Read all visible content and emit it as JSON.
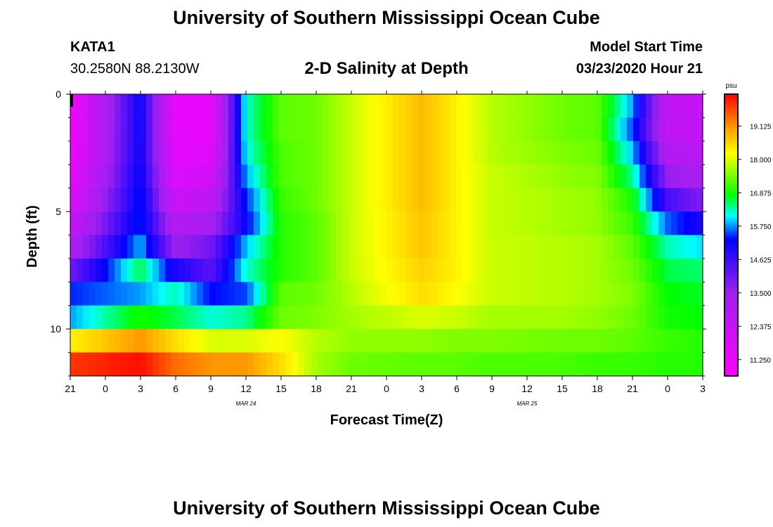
{
  "header": {
    "title": "University of Southern Mississippi Ocean Cube",
    "station": "KATA1",
    "coords": "30.2580N 88.2130W",
    "plot_title": "2-D Salinity at Depth",
    "model_label": "Model Start Time",
    "model_time": "03/23/2020 Hour 21"
  },
  "footer": {
    "title": "University of Southern Mississippi Ocean Cube"
  },
  "chart_data": {
    "type": "heatmap",
    "title": "2-D Salinity at Depth",
    "xlabel": "Forecast Time(Z)",
    "ylabel": "Depth (ft)",
    "x_ticks": [
      "21",
      "0",
      "3",
      "6",
      "9",
      "12",
      "15",
      "18",
      "21",
      "0",
      "3",
      "6",
      "9",
      "12",
      "15",
      "18",
      "21",
      "0",
      "3"
    ],
    "x_range_hours": [
      0,
      54
    ],
    "x_date_labels": [
      {
        "label": "MAR 24",
        "hour": 15
      },
      {
        "label": "MAR 25",
        "hour": 39
      }
    ],
    "y_ticks": [
      0,
      5,
      10
    ],
    "ylim": [
      0,
      12
    ],
    "y_inverted": true,
    "colorbar": {
      "unit": "psu",
      "range": [
        10.7,
        20.2
      ],
      "ticks": [
        "19.125",
        "18.000",
        "16.875",
        "15.750",
        "14.625",
        "13.500",
        "12.375",
        "11.250"
      ],
      "tick_values": [
        19.125,
        18.0,
        16.875,
        15.75,
        14.625,
        13.5,
        12.375,
        11.25
      ]
    },
    "time_hours": [
      0,
      6,
      9,
      12,
      15,
      18,
      21,
      24,
      30,
      33,
      36,
      42,
      45,
      48,
      51,
      54
    ],
    "layer_depths_ft": [
      0.5,
      1.5,
      2.5,
      3.5,
      4.5,
      5.5,
      6.5,
      7.5,
      8.5,
      9.5,
      10.5,
      11.5
    ],
    "layers": [
      [
        11.1,
        15.2,
        11.4,
        11.4,
        16.2,
        17.3,
        17.4,
        17.9,
        18.8,
        18.3,
        17.8,
        17.4,
        17.3,
        15.8,
        12.5,
        12.4
      ],
      [
        11.1,
        15.2,
        11.4,
        11.4,
        16.2,
        17.3,
        17.4,
        17.9,
        18.8,
        18.3,
        17.8,
        17.4,
        17.3,
        15.5,
        12.6,
        12.5
      ],
      [
        11.2,
        15.2,
        11.5,
        11.6,
        16.1,
        17.2,
        17.4,
        17.9,
        18.8,
        18.3,
        17.8,
        17.5,
        17.4,
        15.9,
        13.0,
        12.8
      ],
      [
        11.4,
        15.3,
        11.8,
        12.0,
        15.8,
        17.2,
        17.4,
        17.9,
        18.8,
        18.3,
        17.9,
        17.6,
        17.5,
        16.4,
        13.6,
        13.2
      ],
      [
        11.8,
        15.4,
        12.3,
        12.6,
        15.4,
        17.1,
        17.4,
        17.9,
        18.8,
        18.3,
        17.9,
        17.7,
        17.6,
        16.9,
        14.5,
        13.8
      ],
      [
        12.4,
        15.5,
        12.9,
        13.3,
        15.2,
        17.0,
        17.3,
        17.9,
        18.7,
        18.3,
        17.9,
        17.7,
        17.6,
        17.1,
        15.6,
        15.0
      ],
      [
        13.0,
        15.9,
        13.5,
        14.0,
        15.9,
        17.0,
        17.3,
        17.9,
        18.7,
        18.3,
        17.9,
        17.8,
        17.7,
        17.3,
        16.3,
        16.0
      ],
      [
        14.0,
        16.6,
        15.0,
        14.3,
        16.2,
        17.0,
        17.3,
        17.9,
        18.6,
        18.3,
        17.9,
        17.8,
        17.7,
        17.4,
        16.6,
        16.5
      ],
      [
        15.4,
        15.8,
        16.3,
        15.3,
        15.5,
        17.3,
        17.4,
        17.8,
        18.5,
        18.2,
        17.9,
        17.8,
        17.7,
        17.5,
        16.8,
        16.7
      ],
      [
        15.8,
        16.9,
        16.6,
        16.2,
        16.4,
        17.4,
        17.5,
        17.7,
        18.0,
        17.9,
        17.7,
        17.7,
        17.6,
        17.4,
        16.9,
        16.8
      ],
      [
        18.3,
        19.1,
        18.5,
        18.0,
        18.0,
        18.2,
        17.8,
        17.6,
        17.6,
        17.5,
        17.5,
        17.4,
        17.4,
        17.3,
        17.1,
        17.0
      ],
      [
        19.8,
        20.1,
        19.4,
        19.1,
        19.1,
        18.5,
        17.7,
        17.4,
        17.3,
        17.3,
        17.2,
        17.2,
        17.1,
        17.1,
        17.0,
        17.0
      ]
    ]
  }
}
